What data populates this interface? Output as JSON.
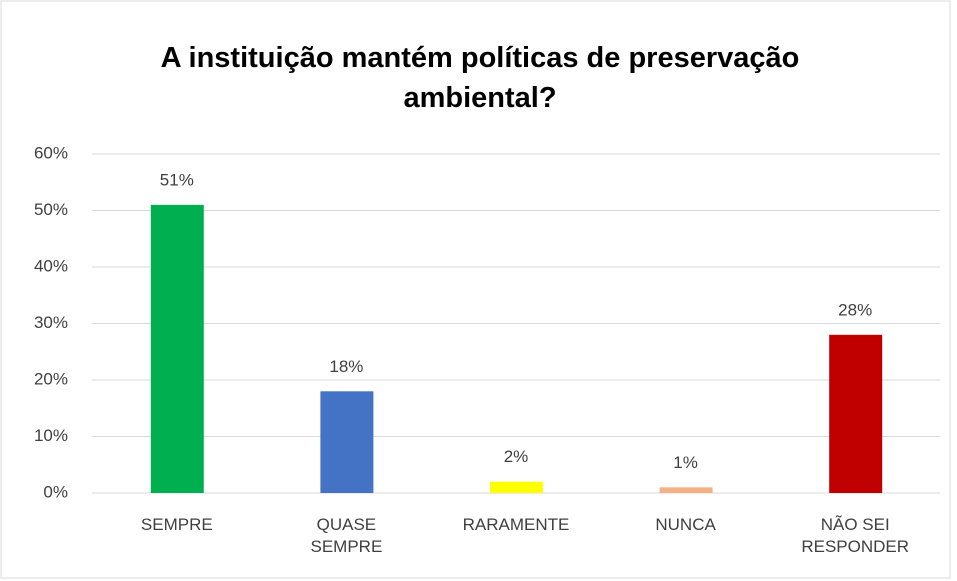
{
  "chart_data": {
    "type": "bar",
    "title": "A instituição mantém políticas de preservação ambiental?",
    "categories": [
      "SEMPRE",
      "QUASE SEMPRE",
      "RARAMENTE",
      "NUNCA",
      "NÃO SEI RESPONDER"
    ],
    "values": [
      51,
      18,
      2,
      1,
      28
    ],
    "value_labels": [
      "51%",
      "18%",
      "2%",
      "1%",
      "28%"
    ],
    "colors": [
      "#00b050",
      "#4472c4",
      "#ffff00",
      "#f4b183",
      "#c00000"
    ],
    "ylim": [
      0,
      60
    ],
    "yticks": [
      {
        "value": 0,
        "label": "0%"
      },
      {
        "value": 10,
        "label": "10%"
      },
      {
        "value": 20,
        "label": "20%"
      },
      {
        "value": 30,
        "label": "30%"
      },
      {
        "value": 40,
        "label": "40%"
      },
      {
        "value": 50,
        "label": "50%"
      },
      {
        "value": 60,
        "label": "60%"
      }
    ],
    "grid": true
  }
}
